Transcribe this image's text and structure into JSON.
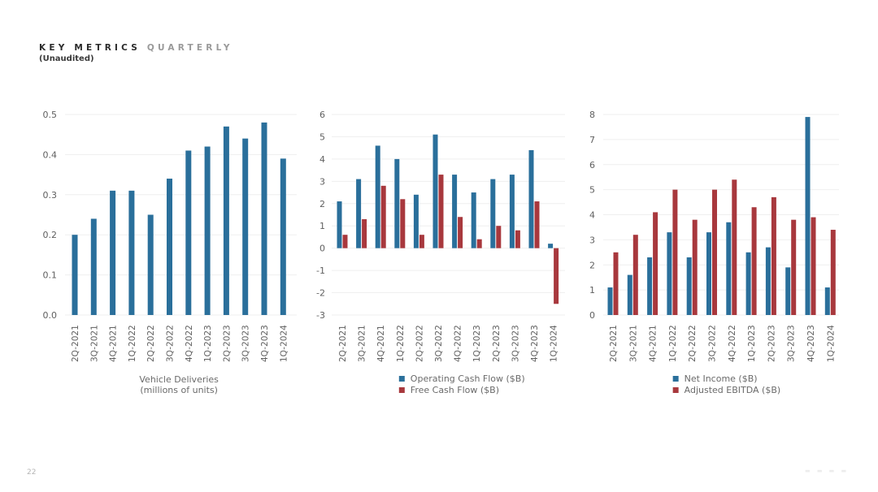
{
  "header": {
    "title_bold": "KEY METRICS",
    "title_light": "QUARTERLY",
    "subtitle": "(Unaudited)"
  },
  "footer": {
    "page_number": "22"
  },
  "colors": {
    "blue": "#2a6f9b",
    "red": "#a8383d"
  },
  "chart_data": [
    {
      "type": "bar",
      "title": "",
      "caption": [
        "Vehicle Deliveries",
        "(millions of units)"
      ],
      "categories": [
        "2Q-2021",
        "3Q-2021",
        "4Q-2021",
        "1Q-2022",
        "2Q-2022",
        "3Q-2022",
        "4Q-2022",
        "1Q-2023",
        "2Q-2023",
        "3Q-2023",
        "4Q-2023",
        "1Q-2024"
      ],
      "series": [
        {
          "name": "Vehicle Deliveries (millions of units)",
          "color": "#2a6f9b",
          "values": [
            0.2,
            0.24,
            0.31,
            0.31,
            0.25,
            0.34,
            0.41,
            0.42,
            0.47,
            0.44,
            0.48,
            0.39
          ]
        }
      ],
      "ylim": [
        0,
        0.5
      ],
      "yticks": [
        "0.0",
        "0.1",
        "0.2",
        "0.3",
        "0.4",
        "0.5"
      ],
      "ytick_values": [
        0,
        0.1,
        0.2,
        0.3,
        0.4,
        0.5
      ],
      "grid": true,
      "legend": "none"
    },
    {
      "type": "bar",
      "title": "",
      "caption": [],
      "categories": [
        "2Q-2021",
        "3Q-2021",
        "4Q-2021",
        "1Q-2022",
        "2Q-2022",
        "3Q-2022",
        "4Q-2022",
        "1Q-2023",
        "2Q-2023",
        "3Q-2023",
        "4Q-2023",
        "1Q-2024"
      ],
      "series": [
        {
          "name": "Operating Cash Flow ($B)",
          "color": "#2a6f9b",
          "values": [
            2.1,
            3.1,
            4.6,
            4.0,
            2.4,
            5.1,
            3.3,
            2.5,
            3.1,
            3.3,
            4.4,
            0.2
          ]
        },
        {
          "name": "Free Cash Flow ($B)",
          "color": "#a8383d",
          "values": [
            0.6,
            1.3,
            2.8,
            2.2,
            0.6,
            3.3,
            1.4,
            0.4,
            1.0,
            0.8,
            2.1,
            -2.5
          ]
        }
      ],
      "ylim": [
        -3,
        6
      ],
      "yticks": [
        "-3",
        "-2",
        "-1",
        "0",
        "1",
        "2",
        "3",
        "4",
        "5",
        "6"
      ],
      "ytick_values": [
        -3,
        -2,
        -1,
        0,
        1,
        2,
        3,
        4,
        5,
        6
      ],
      "grid": true,
      "legend": "bottom"
    },
    {
      "type": "bar",
      "title": "",
      "caption": [],
      "categories": [
        "2Q-2021",
        "3Q-2021",
        "4Q-2021",
        "1Q-2022",
        "2Q-2022",
        "3Q-2022",
        "4Q-2022",
        "1Q-2023",
        "2Q-2023",
        "3Q-2023",
        "4Q-2023",
        "1Q-2024"
      ],
      "series": [
        {
          "name": "Net Income ($B)",
          "color": "#2a6f9b",
          "values": [
            1.1,
            1.6,
            2.3,
            3.3,
            2.3,
            3.3,
            3.7,
            2.5,
            2.7,
            1.9,
            7.9,
            1.1
          ]
        },
        {
          "name": "Adjusted EBITDA ($B)",
          "color": "#a8383d",
          "values": [
            2.5,
            3.2,
            4.1,
            5.0,
            3.8,
            5.0,
            5.4,
            4.3,
            4.7,
            3.8,
            3.9,
            3.4
          ]
        }
      ],
      "ylim": [
        0,
        8
      ],
      "yticks": [
        "0",
        "1",
        "2",
        "3",
        "4",
        "5",
        "6",
        "7",
        "8"
      ],
      "ytick_values": [
        0,
        1,
        2,
        3,
        4,
        5,
        6,
        7,
        8
      ],
      "grid": true,
      "legend": "bottom"
    }
  ]
}
